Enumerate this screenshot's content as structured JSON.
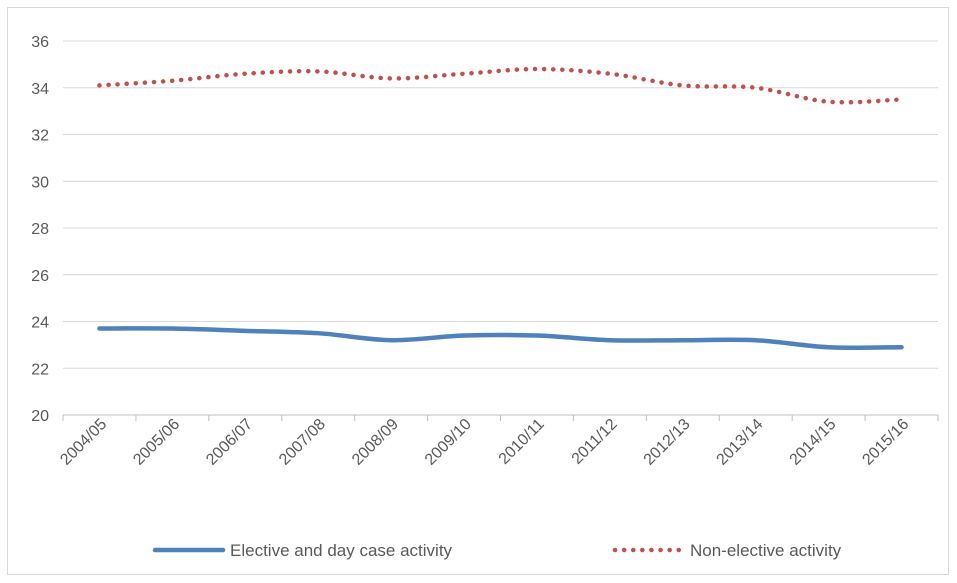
{
  "chart_data": {
    "type": "line",
    "title": "",
    "xlabel": "",
    "ylabel": "",
    "categories": [
      "2004/05",
      "2005/06",
      "2006/07",
      "2007/08",
      "2008/09",
      "2009/10",
      "2010/11",
      "2011/12",
      "2012/13",
      "2013/14",
      "2014/15",
      "2015/16"
    ],
    "ylim": [
      20,
      36
    ],
    "yticks": [
      20,
      22,
      24,
      26,
      28,
      30,
      32,
      34,
      36
    ],
    "grid": true,
    "legend_position": "bottom",
    "series": [
      {
        "name": "Elective and day case activity",
        "values": [
          23.7,
          23.7,
          23.6,
          23.5,
          23.2,
          23.4,
          23.4,
          23.2,
          23.2,
          23.2,
          22.9,
          22.9
        ],
        "color": "#4f81bd",
        "style": "solid"
      },
      {
        "name": "Non-elective activity",
        "values": [
          34.1,
          34.3,
          34.6,
          34.7,
          34.4,
          34.6,
          34.8,
          34.6,
          34.1,
          34.0,
          33.4,
          33.5
        ],
        "color": "#c0504d",
        "style": "dotted"
      }
    ]
  }
}
